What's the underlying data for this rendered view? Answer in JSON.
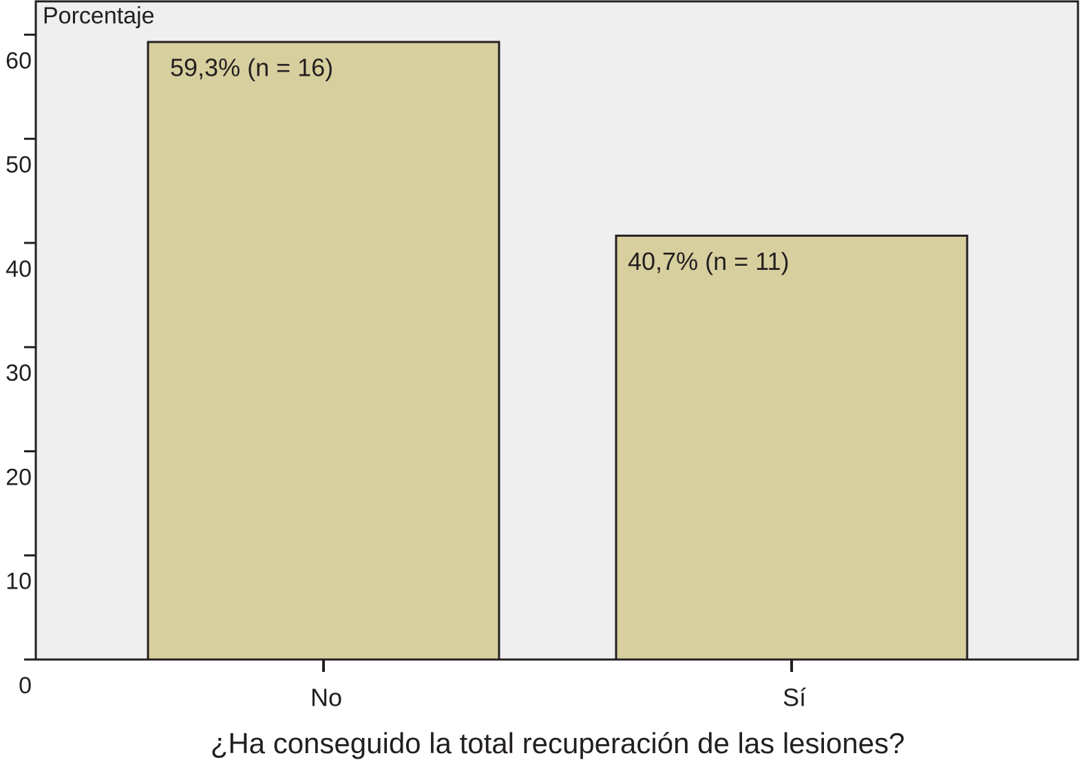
{
  "chart_data": {
    "type": "bar",
    "y_label": "Porcentaje",
    "x_label": "¿Ha conseguido la total recuperación de las lesiones?",
    "categories": [
      "No",
      "Sí"
    ],
    "values": [
      59.3,
      40.7
    ],
    "value_labels": [
      "59,3% (n = 16)",
      "40,7% (n = 11)"
    ],
    "color": "#d8cf9f",
    "ylim": [
      0,
      63.2
    ],
    "yticks": [
      0,
      10,
      20,
      30,
      40,
      50,
      60
    ]
  }
}
